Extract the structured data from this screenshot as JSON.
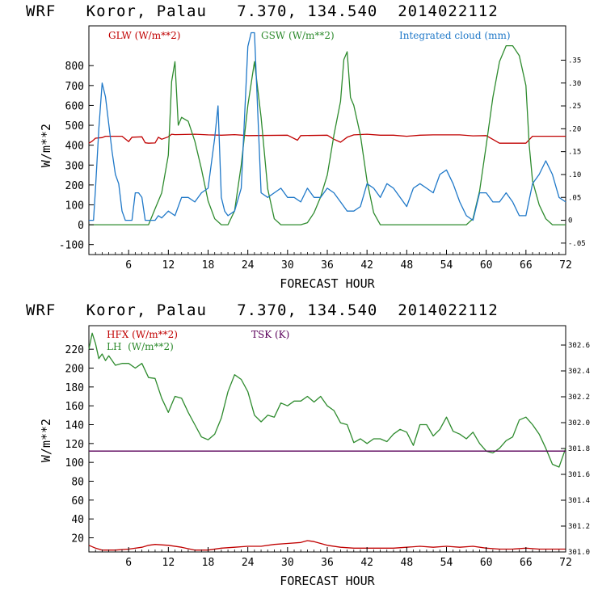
{
  "chart_data": [
    {
      "type": "line",
      "title": "WRF   Koror, Palau   7.370, 134.540  2014022112",
      "xlabel": "FORECAST HOUR",
      "ylabel": "W/m**2",
      "xlim": [
        0,
        72
      ],
      "ylim": [
        -150,
        1000
      ],
      "y2lim": [
        -0.075,
        0.425
      ],
      "xticks": [
        "6",
        "12",
        "18",
        "24",
        "30",
        "36",
        "42",
        "48",
        "54",
        "60",
        "66",
        "72"
      ],
      "yticks": [
        "-100",
        "0",
        "100",
        "200",
        "300",
        "400",
        "500",
        "600",
        "700",
        "800"
      ],
      "y2ticks": [
        "-.05",
        "0",
        ".05",
        ".10",
        ".15",
        ".20",
        ".25",
        ".30",
        ".35"
      ],
      "legend": [
        "GLW (W/m**2)",
        "GSW (W/m**2)",
        "Integrated cloud (mm)"
      ],
      "colors": {
        "GLW": "#c00000",
        "GSW": "#2e8b2e",
        "cloud": "#1f78c8"
      },
      "series": [
        {
          "name": "GLW (W/m**2)",
          "axis": "left",
          "x": [
            0,
            0.5,
            1,
            2,
            2.5,
            5,
            6,
            6.5,
            8,
            8.5,
            9,
            10,
            10.5,
            11,
            12,
            12.5,
            13,
            16,
            18,
            20,
            22,
            24,
            30,
            31.5,
            32,
            36,
            37,
            38,
            39,
            40,
            42,
            44,
            46,
            48,
            50,
            52,
            56,
            58,
            60,
            62,
            63,
            66,
            67,
            72
          ],
          "y": [
            410,
            420,
            435,
            438,
            445,
            445,
            418,
            440,
            442,
            412,
            410,
            411,
            440,
            430,
            442,
            455,
            453,
            455,
            452,
            450,
            453,
            448,
            450,
            425,
            448,
            450,
            430,
            415,
            440,
            452,
            455,
            450,
            450,
            445,
            450,
            452,
            452,
            447,
            448,
            410,
            410,
            410,
            445,
            445
          ]
        },
        {
          "name": "GSW (W/m**2)",
          "axis": "left",
          "x": [
            0,
            9,
            10,
            11,
            12,
            12.5,
            13,
            13.5,
            14,
            14.5,
            15,
            16,
            17,
            18,
            19,
            20,
            21,
            22,
            23,
            24,
            25,
            26,
            27,
            28,
            29,
            30,
            31,
            32,
            33,
            34,
            35,
            36,
            37,
            38,
            38.5,
            39,
            39.5,
            40,
            41,
            42,
            43,
            44,
            57,
            58,
            59,
            60,
            61,
            62,
            63,
            64,
            65,
            66,
            66.5,
            67,
            68,
            69,
            70,
            72
          ],
          "y": [
            0,
            0,
            80,
            160,
            350,
            720,
            820,
            500,
            540,
            530,
            520,
            420,
            280,
            120,
            30,
            0,
            0,
            70,
            300,
            600,
            820,
            540,
            180,
            30,
            0,
            0,
            0,
            0,
            10,
            60,
            140,
            250,
            450,
            620,
            830,
            870,
            640,
            600,
            450,
            220,
            60,
            0,
            0,
            30,
            170,
            400,
            640,
            820,
            900,
            900,
            850,
            700,
            400,
            220,
            100,
            30,
            0,
            0
          ]
        },
        {
          "name": "Integrated cloud (mm)",
          "axis": "right",
          "x": [
            0,
            0.7,
            1,
            1.5,
            2,
            2.5,
            3,
            3.5,
            4,
            4.5,
            5,
            5.5,
            6,
            6.5,
            7,
            7.5,
            8,
            8.5,
            9,
            9.5,
            10,
            10.5,
            11,
            12,
            13,
            14,
            15,
            16,
            17,
            18,
            19,
            19.5,
            20,
            20.5,
            21,
            22,
            23,
            24,
            24.5,
            25,
            26,
            27,
            28,
            29,
            30,
            31,
            32,
            33,
            34,
            35,
            36,
            37,
            38,
            39,
            40,
            41,
            42,
            43,
            44,
            45,
            46,
            47,
            48,
            49,
            50,
            51,
            52,
            53,
            54,
            55,
            56,
            57,
            58,
            59,
            60,
            61,
            62,
            63,
            64,
            65,
            66,
            67,
            68,
            69,
            70,
            71,
            72
          ],
          "y": [
            0,
            0,
            0.07,
            0.2,
            0.3,
            0.27,
            0.21,
            0.15,
            0.1,
            0.08,
            0.02,
            0,
            0,
            0,
            0.06,
            0.06,
            0.05,
            0,
            0,
            0,
            0,
            0.01,
            0.005,
            0.02,
            0.01,
            0.05,
            0.05,
            0.04,
            0.06,
            0.07,
            0.18,
            0.25,
            0.05,
            0.02,
            0.01,
            0.02,
            0.07,
            0.38,
            0.41,
            0.41,
            0.06,
            0.05,
            0.06,
            0.07,
            0.05,
            0.05,
            0.04,
            0.07,
            0.05,
            0.05,
            0.07,
            0.06,
            0.04,
            0.02,
            0.02,
            0.03,
            0.08,
            0.07,
            0.05,
            0.08,
            0.07,
            0.05,
            0.03,
            0.07,
            0.08,
            0.07,
            0.06,
            0.1,
            0.11,
            0.08,
            0.04,
            0.01,
            0,
            0.06,
            0.06,
            0.04,
            0.04,
            0.06,
            0.04,
            0.01,
            0.01,
            0.08,
            0.1,
            0.13,
            0.1,
            0.05,
            0.04
          ]
        }
      ]
    },
    {
      "type": "line",
      "title": "WRF   Koror, Palau   7.370, 134.540  2014022112",
      "xlabel": "FORECAST HOUR",
      "ylabel": "W/m**2",
      "xlim": [
        0,
        72
      ],
      "ylim": [
        5,
        245
      ],
      "y2lim": [
        301.0,
        302.75
      ],
      "xticks": [
        "6",
        "12",
        "18",
        "24",
        "30",
        "36",
        "42",
        "48",
        "54",
        "60",
        "66",
        "72"
      ],
      "yticks": [
        "20",
        "40",
        "60",
        "80",
        "100",
        "120",
        "140",
        "160",
        "180",
        "200",
        "220"
      ],
      "y2ticks": [
        "301.0",
        "301.2",
        "301.4",
        "301.6",
        "301.8",
        "302.0",
        "302.2",
        "302.4",
        "302.6"
      ],
      "legend": [
        "HFX (W/m**2)",
        "LH  (W/m**2)",
        "TSK (K)"
      ],
      "colors": {
        "HFX": "#c00000",
        "LH": "#2e8b2e",
        "TSK": "#5a005a"
      },
      "series": [
        {
          "name": "HFX (W/m**2)",
          "axis": "left",
          "x": [
            0,
            1,
            2,
            4,
            6,
            8,
            9,
            10,
            12,
            14,
            16,
            18,
            20,
            22,
            24,
            26,
            28,
            30,
            32,
            33,
            34,
            36,
            38,
            40,
            42,
            44,
            46,
            48,
            50,
            52,
            54,
            56,
            58,
            60,
            62,
            64,
            66,
            68,
            70,
            72
          ],
          "y": [
            12,
            9,
            7,
            7,
            8,
            10,
            12,
            13,
            12,
            10,
            7,
            7,
            9,
            10,
            11,
            11,
            13,
            14,
            15,
            17,
            16,
            12,
            10,
            9,
            9,
            9,
            9,
            10,
            11,
            10,
            11,
            10,
            11,
            9,
            8,
            8,
            9,
            8,
            8,
            8
          ]
        },
        {
          "name": "LH  (W/m**2)",
          "axis": "left",
          "x": [
            0,
            0.5,
            1,
            1.5,
            2,
            2.5,
            3,
            4,
            5,
            6,
            7,
            8,
            9,
            10,
            11,
            12,
            13,
            14,
            15,
            16,
            17,
            18,
            19,
            20,
            21,
            22,
            23,
            24,
            25,
            26,
            27,
            28,
            29,
            30,
            31,
            32,
            33,
            34,
            35,
            36,
            37,
            38,
            39,
            40,
            41,
            42,
            43,
            44,
            45,
            46,
            47,
            48,
            49,
            50,
            51,
            52,
            53,
            54,
            55,
            56,
            57,
            58,
            59,
            60,
            61,
            62,
            63,
            64,
            65,
            66,
            67,
            68,
            69,
            70,
            71,
            72
          ],
          "y": [
            220,
            237,
            226,
            210,
            215,
            208,
            213,
            203,
            205,
            205,
            200,
            205,
            190,
            189,
            168,
            153,
            170,
            168,
            153,
            140,
            127,
            124,
            130,
            147,
            175,
            193,
            188,
            175,
            150,
            143,
            150,
            148,
            163,
            160,
            165,
            165,
            170,
            164,
            170,
            160,
            155,
            142,
            140,
            121,
            125,
            120,
            125,
            125,
            122,
            130,
            135,
            132,
            118,
            140,
            140,
            128,
            135,
            148,
            133,
            130,
            125,
            132,
            120,
            112,
            110,
            115,
            123,
            127,
            145,
            148,
            140,
            130,
            115,
            98,
            95,
            115
          ]
        },
        {
          "name": "TSK (K)",
          "axis": "right",
          "x": [
            0,
            72
          ],
          "y": [
            301.78,
            301.78
          ]
        }
      ]
    }
  ]
}
